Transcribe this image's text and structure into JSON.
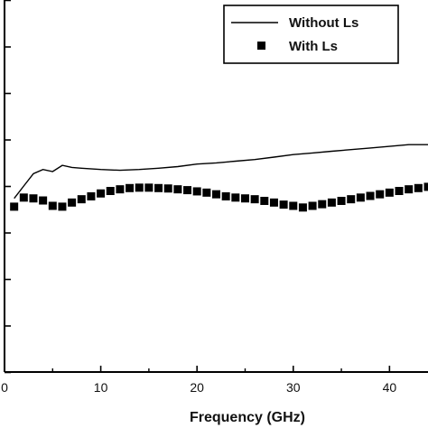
{
  "chart_data": {
    "type": "line",
    "xlabel": "Frequency (GHz)",
    "ylabel": "",
    "title": "",
    "xlim": [
      0,
      44
    ],
    "ylim": [
      0,
      9
    ],
    "x_ticks": [
      0,
      10,
      20,
      30,
      40
    ],
    "x_tick_labels": [
      "0",
      "10",
      "20",
      "30",
      "40"
    ],
    "grid": false,
    "legend_position": "top-right",
    "series": [
      {
        "name": "Without Ls",
        "style": "line",
        "color": "#000000",
        "x": [
          1,
          2,
          3,
          4,
          5,
          6,
          7,
          8,
          10,
          12,
          14,
          16,
          18,
          20,
          22,
          24,
          26,
          28,
          30,
          32,
          34,
          36,
          38,
          40,
          42,
          44
        ],
        "y": [
          4.2,
          4.5,
          4.8,
          4.9,
          4.85,
          5.0,
          4.95,
          4.93,
          4.9,
          4.88,
          4.9,
          4.93,
          4.97,
          5.03,
          5.06,
          5.1,
          5.14,
          5.2,
          5.26,
          5.3,
          5.34,
          5.38,
          5.42,
          5.46,
          5.5,
          5.5
        ]
      },
      {
        "name": "With Ls",
        "style": "markers",
        "marker": "square",
        "color": "#000000",
        "x": [
          1,
          2,
          3,
          4,
          5,
          6,
          7,
          8,
          9,
          10,
          11,
          12,
          13,
          14,
          15,
          16,
          17,
          18,
          19,
          20,
          21,
          22,
          23,
          24,
          25,
          26,
          27,
          28,
          29,
          30,
          31,
          32,
          33,
          34,
          35,
          36,
          37,
          38,
          39,
          40,
          41,
          42,
          43,
          44
        ],
        "y": [
          4.0,
          4.22,
          4.2,
          4.15,
          4.02,
          4.0,
          4.1,
          4.18,
          4.25,
          4.32,
          4.38,
          4.42,
          4.45,
          4.46,
          4.46,
          4.45,
          4.44,
          4.42,
          4.4,
          4.37,
          4.34,
          4.3,
          4.25,
          4.22,
          4.2,
          4.18,
          4.14,
          4.1,
          4.05,
          4.02,
          3.98,
          4.02,
          4.06,
          4.1,
          4.14,
          4.18,
          4.22,
          4.26,
          4.3,
          4.34,
          4.38,
          4.42,
          4.45,
          4.48
        ]
      }
    ]
  }
}
